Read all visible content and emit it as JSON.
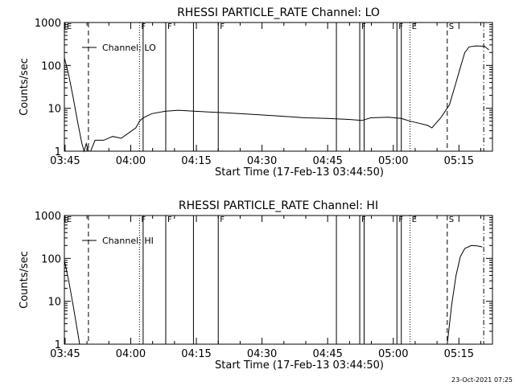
{
  "footer": {
    "timestamp": "23-Oct-2021 07:25"
  },
  "chart_data": [
    {
      "type": "line",
      "title": "RHESSI PARTICLE_RATE Channel: LO",
      "xlabel": "Start Time (17-Feb-13 03:44:50)",
      "ylabel": "Counts/sec",
      "y_scale": "log",
      "ylim": [
        1,
        1000
      ],
      "xlim": [
        "03:44:50",
        "05:22:40"
      ],
      "x_ticks": [
        "03:45",
        "04:00",
        "04:15",
        "04:30",
        "04:45",
        "05:00",
        "05:15"
      ],
      "y_ticks": [
        "1",
        "10",
        "100",
        "1000"
      ],
      "legend": {
        "entries": [
          "Channel: LO"
        ],
        "placement": "top-left"
      },
      "grid": false,
      "series": [
        {
          "name": "Channel: LO",
          "points": [
            [
              "03:44:50",
              150
            ],
            [
              "03:45:50",
              60
            ],
            [
              "03:46:50",
              18
            ],
            [
              "03:47:50",
              5
            ],
            [
              "03:48:50",
              1.5
            ],
            [
              "03:49:20",
              1
            ],
            [
              "03:49:50",
              1.5
            ],
            [
              "03:50:20",
              1
            ],
            [
              "03:50:50",
              1
            ],
            [
              "03:51:50",
              1.8
            ],
            [
              "03:53:50",
              1.8
            ],
            [
              "03:55:50",
              2.2
            ],
            [
              "03:57:50",
              2
            ],
            [
              "03:59:50",
              2.8
            ],
            [
              "04:01:10",
              3.5
            ],
            [
              "04:02:00",
              5
            ],
            [
              "04:02:50",
              6
            ],
            [
              "04:04:50",
              7.5
            ],
            [
              "04:07:50",
              8.5
            ],
            [
              "04:10:50",
              9
            ],
            [
              "04:14:50",
              8.5
            ],
            [
              "04:19:50",
              8
            ],
            [
              "04:24:50",
              7.5
            ],
            [
              "04:29:50",
              7
            ],
            [
              "04:34:50",
              6.5
            ],
            [
              "04:39:50",
              6
            ],
            [
              "04:44:50",
              5.8
            ],
            [
              "04:49:50",
              5.5
            ],
            [
              "04:52:50",
              5.2
            ],
            [
              "04:54:50",
              6
            ],
            [
              "04:58:50",
              6.2
            ],
            [
              "05:01:50",
              5.8
            ],
            [
              "05:03:50",
              5
            ],
            [
              "05:05:50",
              4.5
            ],
            [
              "05:07:50",
              4
            ],
            [
              "05:08:50",
              3.5
            ],
            [
              "05:10:50",
              6
            ],
            [
              "05:12:50",
              12
            ],
            [
              "05:14:20",
              40
            ],
            [
              "05:15:20",
              90
            ],
            [
              "05:16:20",
              200
            ],
            [
              "05:17:20",
              270
            ],
            [
              "05:18:50",
              285
            ],
            [
              "05:20:50",
              280
            ],
            [
              "05:21:50",
              230
            ]
          ]
        }
      ],
      "annotations": [
        {
          "text": "E",
          "time": "03:45:00",
          "line": "none"
        },
        {
          "text": "",
          "time": "03:50:20",
          "line": "dashed"
        },
        {
          "text": "F",
          "time": "04:02:00",
          "line": "dotted"
        },
        {
          "text": "",
          "time": "04:02:50",
          "line": "solid"
        },
        {
          "text": "F",
          "time": "04:08:00",
          "line": "solid"
        },
        {
          "text": "",
          "time": "04:14:20",
          "line": "solid"
        },
        {
          "text": "F",
          "time": "04:20:00",
          "line": "solid"
        },
        {
          "text": "",
          "time": "04:47:00",
          "line": "solid"
        },
        {
          "text": "F",
          "time": "04:52:20",
          "line": "solid"
        },
        {
          "text": "",
          "time": "04:53:20",
          "line": "solid"
        },
        {
          "text": "F",
          "time": "05:00:50",
          "line": "solid"
        },
        {
          "text": "",
          "time": "05:01:50",
          "line": "solid"
        },
        {
          "text": "E",
          "time": "05:03:50",
          "line": "dotted"
        },
        {
          "text": "S",
          "time": "05:12:20",
          "line": "dashed"
        },
        {
          "text": "",
          "time": "05:20:40",
          "line": "dash-dot"
        }
      ]
    },
    {
      "type": "line",
      "title": "RHESSI PARTICLE_RATE Channel: HI",
      "xlabel": "Start Time (17-Feb-13 03:44:50)",
      "ylabel": "Counts/sec",
      "y_scale": "log",
      "ylim": [
        1,
        1000
      ],
      "xlim": [
        "03:44:50",
        "05:22:40"
      ],
      "x_ticks": [
        "03:45",
        "04:00",
        "04:15",
        "04:30",
        "04:45",
        "05:00",
        "05:15"
      ],
      "y_ticks": [
        "1",
        "10",
        "100",
        "1000"
      ],
      "legend": {
        "entries": [
          "Channel: HI"
        ],
        "placement": "top-left"
      },
      "grid": false,
      "series": [
        {
          "name": "Channel: HI",
          "points": [
            [
              "03:44:50",
              90
            ],
            [
              "03:45:50",
              30
            ],
            [
              "03:46:50",
              8
            ],
            [
              "03:47:50",
              2
            ],
            [
              "03:48:20",
              1
            ]
          ]
        },
        {
          "name": "Channel: HI",
          "points": [
            [
              "05:12:20",
              1
            ],
            [
              "05:13:20",
              8
            ],
            [
              "05:14:20",
              40
            ],
            [
              "05:15:20",
              110
            ],
            [
              "05:16:20",
              170
            ],
            [
              "05:17:50",
              200
            ],
            [
              "05:19:20",
              195
            ],
            [
              "05:20:20",
              185
            ]
          ]
        }
      ],
      "annotations": [
        {
          "text": "E",
          "time": "03:45:00",
          "line": "none"
        },
        {
          "text": "",
          "time": "03:50:20",
          "line": "dashed"
        },
        {
          "text": "F",
          "time": "04:02:00",
          "line": "dotted"
        },
        {
          "text": "",
          "time": "04:02:50",
          "line": "solid"
        },
        {
          "text": "F",
          "time": "04:08:00",
          "line": "solid"
        },
        {
          "text": "",
          "time": "04:14:20",
          "line": "solid"
        },
        {
          "text": "F",
          "time": "04:20:00",
          "line": "solid"
        },
        {
          "text": "",
          "time": "04:47:00",
          "line": "solid"
        },
        {
          "text": "F",
          "time": "04:52:20",
          "line": "solid"
        },
        {
          "text": "",
          "time": "04:53:20",
          "line": "solid"
        },
        {
          "text": "F",
          "time": "05:00:50",
          "line": "solid"
        },
        {
          "text": "",
          "time": "05:01:50",
          "line": "solid"
        },
        {
          "text": "E",
          "time": "05:03:50",
          "line": "dotted"
        },
        {
          "text": "S",
          "time": "05:12:20",
          "line": "dashed"
        },
        {
          "text": "",
          "time": "05:20:40",
          "line": "dash-dot"
        }
      ]
    }
  ]
}
